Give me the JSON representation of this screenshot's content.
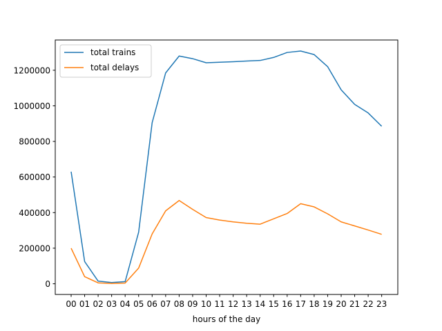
{
  "chart_data": {
    "type": "line",
    "title": "",
    "xlabel": "hours of the day",
    "ylabel": "",
    "categories": [
      "00",
      "01",
      "02",
      "03",
      "04",
      "05",
      "06",
      "07",
      "08",
      "09",
      "10",
      "11",
      "12",
      "13",
      "14",
      "15",
      "16",
      "17",
      "18",
      "19",
      "20",
      "21",
      "22",
      "23"
    ],
    "series": [
      {
        "name": "total trains",
        "color": "#1f77b4",
        "values": [
          630000,
          125000,
          15000,
          7000,
          12000,
          290000,
          905000,
          1185000,
          1280000,
          1265000,
          1242000,
          1245000,
          1248000,
          1252000,
          1255000,
          1272000,
          1300000,
          1308000,
          1288000,
          1220000,
          1090000,
          1008000,
          960000,
          885000
        ]
      },
      {
        "name": "total delays",
        "color": "#ff7f0e",
        "values": [
          200000,
          40000,
          5000,
          2000,
          4000,
          88000,
          280000,
          410000,
          468000,
          418000,
          372000,
          358000,
          348000,
          340000,
          335000,
          365000,
          395000,
          450000,
          432000,
          393000,
          348000,
          325000,
          302000,
          278000
        ]
      }
    ],
    "yticks": [
      0,
      200000,
      400000,
      600000,
      800000,
      1000000,
      1200000
    ],
    "ytick_labels": [
      "0",
      "200000",
      "400000",
      "600000",
      "800000",
      "1000000",
      "1200000"
    ],
    "ylim": [
      -60000,
      1370000
    ],
    "grid": false,
    "legend_position": "upper left"
  }
}
